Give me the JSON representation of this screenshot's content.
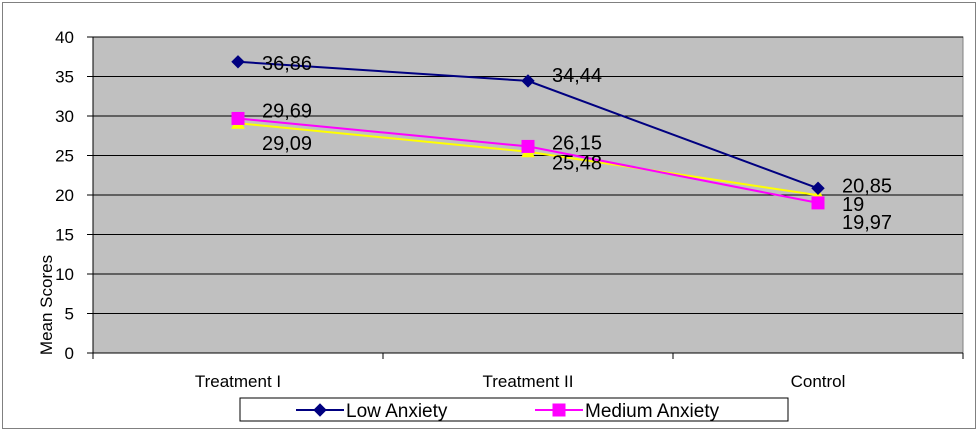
{
  "chart_data": {
    "type": "line",
    "title": "",
    "xlabel": "",
    "ylabel": "Mean Scores",
    "categories": [
      "Treatment I",
      "Treatment II",
      "Control"
    ],
    "ylim": [
      0,
      40
    ],
    "yticks": [
      0,
      5,
      10,
      15,
      20,
      25,
      30,
      35,
      40
    ],
    "grid": true,
    "legend_position": "bottom",
    "plot_background": "#c0c0c0",
    "series": [
      {
        "name": "Low Anxiety",
        "values": [
          36.86,
          34.44,
          20.85
        ],
        "labels": [
          "36,86",
          "34,44",
          "20,85"
        ],
        "color": "#000080",
        "marker": "diamond",
        "in_legend": true
      },
      {
        "name": "Medium Anxiety",
        "values": [
          29.69,
          26.15,
          19
        ],
        "labels": [
          "29,69",
          "26,15",
          "19"
        ],
        "color": "#ff00ff",
        "marker": "square",
        "in_legend": true
      },
      {
        "name": "",
        "values": [
          29.09,
          25.48,
          19.97
        ],
        "labels": [
          "29,09",
          "25,48",
          "19,97"
        ],
        "color": "#ffff00",
        "marker": "triangle",
        "in_legend": false
      }
    ]
  }
}
